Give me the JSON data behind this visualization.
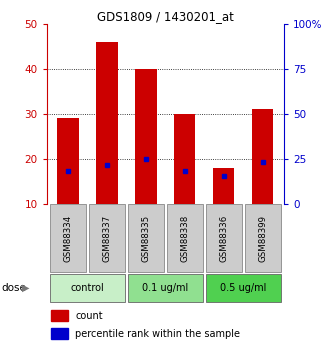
{
  "title": "GDS1809 / 1430201_at",
  "samples": [
    "GSM88334",
    "GSM88337",
    "GSM88335",
    "GSM88338",
    "GSM88336",
    "GSM88399"
  ],
  "count_values": [
    29,
    46,
    40,
    30,
    18,
    31
  ],
  "percentile_values": [
    18,
    21.5,
    25,
    18,
    15.5,
    23
  ],
  "ylim_left": [
    10,
    50
  ],
  "ylim_right": [
    0,
    100
  ],
  "yticks_left": [
    10,
    20,
    30,
    40,
    50
  ],
  "yticks_right": [
    0,
    25,
    50,
    75,
    100
  ],
  "groups": [
    {
      "label": "control",
      "indices": [
        0,
        1
      ],
      "color": "#c8efc8"
    },
    {
      "label": "0.1 ug/ml",
      "indices": [
        2,
        3
      ],
      "color": "#90e090"
    },
    {
      "label": "0.5 ug/ml",
      "indices": [
        4,
        5
      ],
      "color": "#50d050"
    }
  ],
  "bar_color": "#cc0000",
  "marker_color": "#0000cc",
  "bar_width": 0.55,
  "sample_box_color": "#cccccc",
  "dose_label": "dose",
  "legend_count_label": "count",
  "legend_percentile_label": "percentile rank within the sample",
  "left_axis_color": "#cc0000",
  "right_axis_color": "#0000cc",
  "grid_yticks": [
    20,
    30,
    40
  ]
}
